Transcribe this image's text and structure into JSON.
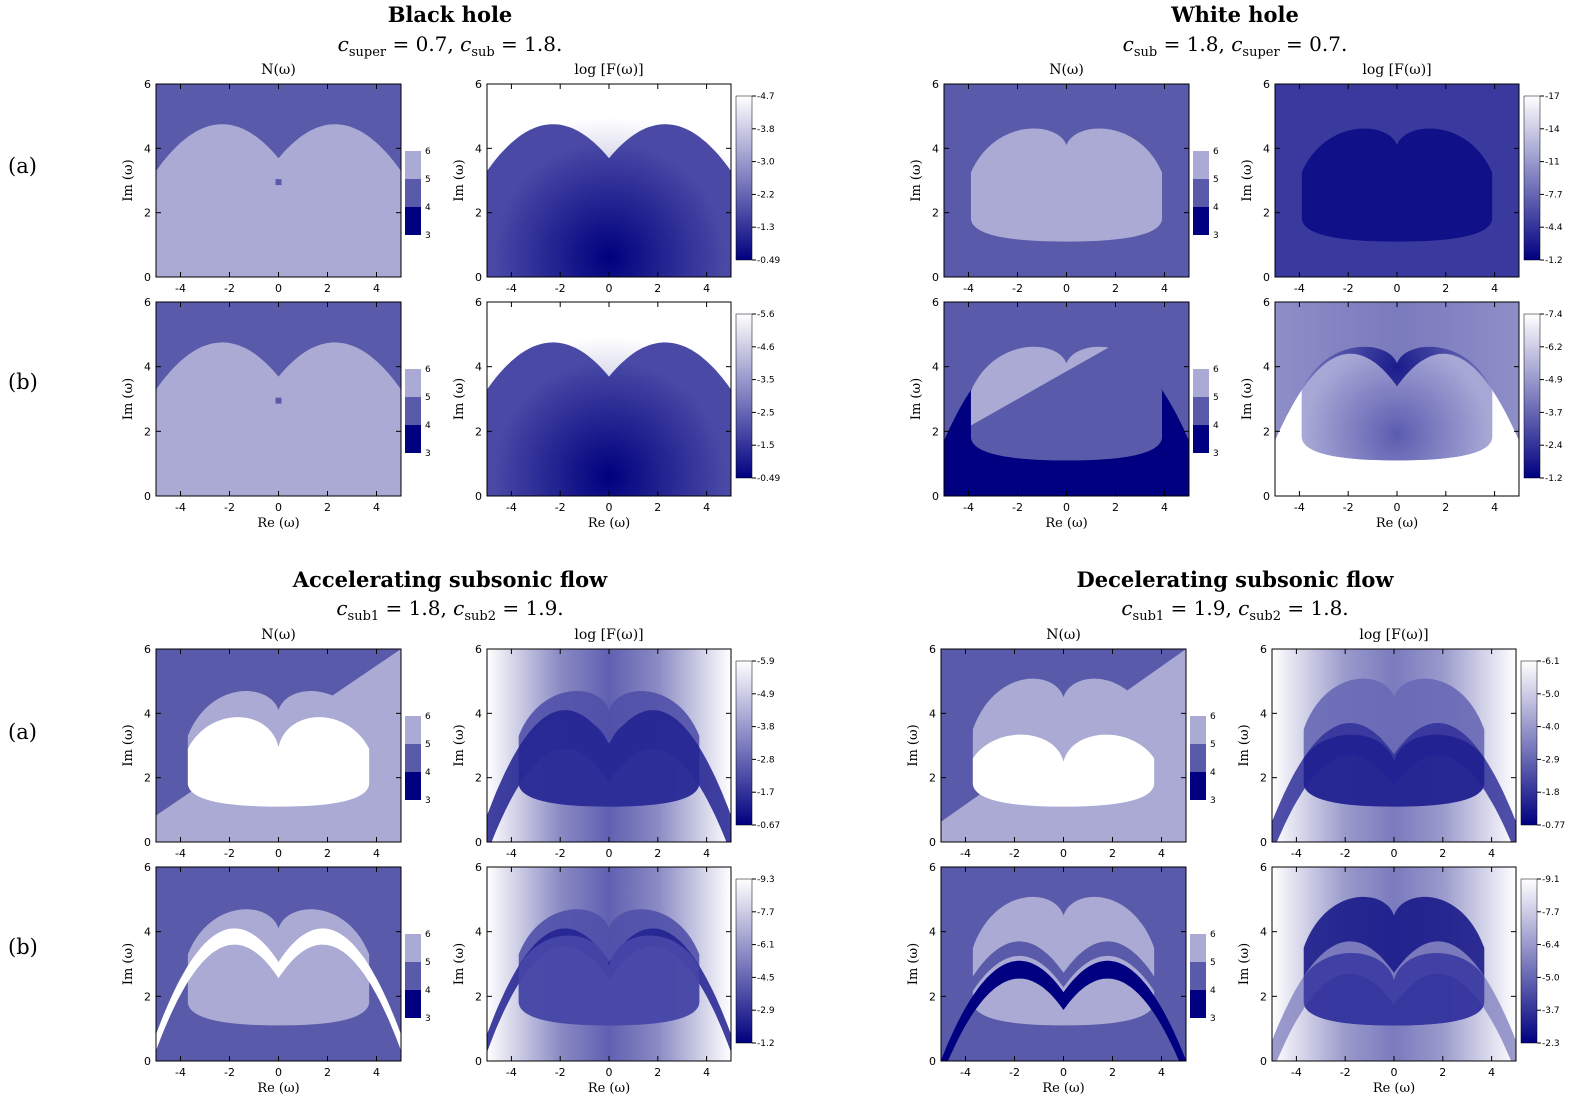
{
  "chart_data": {
    "type": "heatmap",
    "quadrants": [
      {
        "title": "Black hole",
        "params": [
          {
            "sym": "c",
            "sub": "super",
            "val": "0.7"
          },
          {
            "sym": "c",
            "sub": "sub",
            "val": "1.8"
          }
        ],
        "rows": [
          {
            "label": "(a)",
            "f_ticks": [
              "-4.7",
              "-3.8",
              "-3.0",
              "-2.2",
              "-1.3",
              "-0.49"
            ]
          },
          {
            "label": "(b)",
            "f_ticks": [
              "-5.6",
              "-4.6",
              "-3.5",
              "-2.5",
              "-1.5",
              "-0.49"
            ]
          }
        ]
      },
      {
        "title": "White hole",
        "params": [
          {
            "sym": "c",
            "sub": "sub",
            "val": "1.8"
          },
          {
            "sym": "c",
            "sub": "super",
            "val": "0.7"
          }
        ],
        "rows": [
          {
            "label": "",
            "f_ticks": [
              "-17",
              "-14",
              "-11",
              "-7.7",
              "-4.4",
              "-1.2"
            ]
          },
          {
            "label": "",
            "f_ticks": [
              "-7.4",
              "-6.2",
              "-4.9",
              "-3.7",
              "-2.4",
              "-1.2"
            ]
          }
        ]
      },
      {
        "title": "Accelerating subsonic flow",
        "params": [
          {
            "sym": "c",
            "sub": "sub1",
            "val": "1.8"
          },
          {
            "sym": "c",
            "sub": "sub2",
            "val": "1.9"
          }
        ],
        "rows": [
          {
            "label": "(a)",
            "f_ticks": [
              "-5.9",
              "-4.9",
              "-3.8",
              "-2.8",
              "-1.7",
              "-0.67"
            ]
          },
          {
            "label": "(b)",
            "f_ticks": [
              "-9.3",
              "-7.7",
              "-6.1",
              "-4.5",
              "-2.9",
              "-1.2"
            ]
          }
        ]
      },
      {
        "title": "Decelerating subsonic flow",
        "params": [
          {
            "sym": "c",
            "sub": "sub1",
            "val": "1.9"
          },
          {
            "sym": "c",
            "sub": "sub2",
            "val": "1.8"
          }
        ],
        "rows": [
          {
            "label": "",
            "f_ticks": [
              "-6.1",
              "-5.0",
              "-4.0",
              "-2.9",
              "-1.8",
              "-0.77"
            ]
          },
          {
            "label": "",
            "f_ticks": [
              "-9.1",
              "-7.7",
              "-6.4",
              "-5.0",
              "-3.7",
              "-2.3"
            ]
          }
        ]
      }
    ],
    "panel_titles": {
      "n": "N(ω)",
      "f": "log [F(ω)]"
    },
    "xlabel": "Re (ω)",
    "ylabel": "Im (ω)",
    "x_ticks": [
      "-4",
      "-2",
      "0",
      "2",
      "4"
    ],
    "y_ticks": [
      "0",
      "2",
      "4",
      "6"
    ],
    "xlim": [
      -5,
      5
    ],
    "ylim": [
      0,
      6
    ],
    "n_colorbar_ticks": [
      "6",
      "5",
      "4",
      "3"
    ],
    "n_levels": {
      "3": "#000080",
      "4": "#5a5aaa",
      "5": "#aaaad4",
      "6": "#ffffff"
    },
    "gradient_colors": [
      "#000080",
      "#ffffff"
    ]
  }
}
